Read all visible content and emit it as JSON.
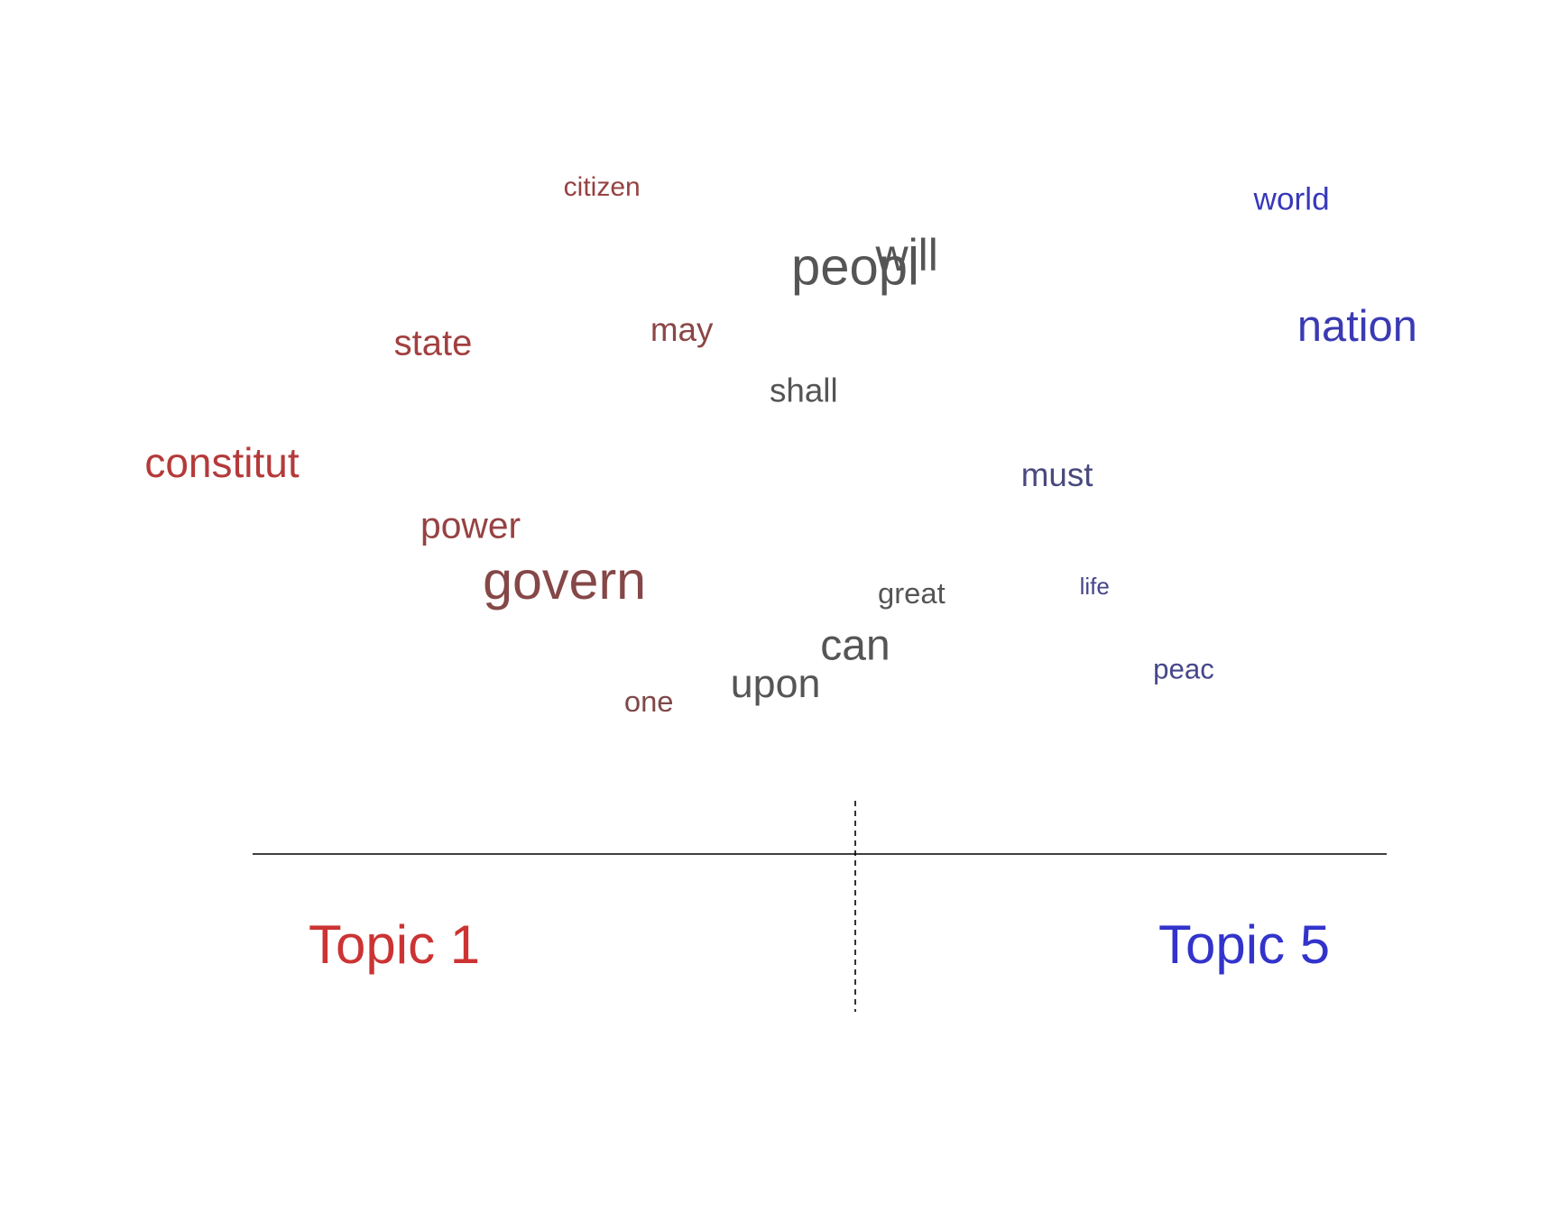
{
  "chart_data": {
    "type": "scatter",
    "left_label": "Topic 1",
    "right_label": "Topic 5",
    "colors": {
      "topic1": "#cc3333",
      "topic5": "#3333cc",
      "neutral": "#555555",
      "axis": "#000000"
    },
    "words": [
      {
        "word": "citizen",
        "x": -0.54,
        "y": 0.91,
        "weight": 0.15,
        "lean": -0.55
      },
      {
        "word": "world",
        "x": 0.93,
        "y": 0.88,
        "weight": 0.28,
        "lean": 0.85
      },
      {
        "word": "will",
        "x": 0.11,
        "y": 0.75,
        "weight": 0.65,
        "lean": 0.0
      },
      {
        "word": "peopl",
        "x": 0.0,
        "y": 0.72,
        "weight": 0.85,
        "lean": 0.0
      },
      {
        "word": "may",
        "x": -0.37,
        "y": 0.6,
        "weight": 0.32,
        "lean": -0.45
      },
      {
        "word": "state",
        "x": -0.9,
        "y": 0.57,
        "weight": 0.4,
        "lean": -0.65
      },
      {
        "word": "nation",
        "x": 1.07,
        "y": 0.6,
        "weight": 0.62,
        "lean": 0.8
      },
      {
        "word": "shall",
        "x": -0.11,
        "y": 0.47,
        "weight": 0.32,
        "lean": 0.0
      },
      {
        "word": "constitut",
        "x": -1.35,
        "y": 0.31,
        "weight": 0.55,
        "lean": -0.8
      },
      {
        "word": "must",
        "x": 0.43,
        "y": 0.29,
        "weight": 0.32,
        "lean": 0.35
      },
      {
        "word": "power",
        "x": -0.82,
        "y": 0.18,
        "weight": 0.42,
        "lean": -0.55
      },
      {
        "word": "govern",
        "x": -0.62,
        "y": 0.05,
        "weight": 0.88,
        "lean": -0.4
      },
      {
        "word": "great",
        "x": 0.12,
        "y": 0.04,
        "weight": 0.22,
        "lean": 0.0
      },
      {
        "word": "life",
        "x": 0.51,
        "y": 0.06,
        "weight": 0.05,
        "lean": 0.45
      },
      {
        "word": "can",
        "x": 0.0,
        "y": -0.08,
        "weight": 0.6,
        "lean": 0.0
      },
      {
        "word": "upon",
        "x": -0.17,
        "y": -0.16,
        "weight": 0.52,
        "lean": 0.0
      },
      {
        "word": "peac",
        "x": 0.7,
        "y": -0.12,
        "weight": 0.18,
        "lean": 0.45
      },
      {
        "word": "one",
        "x": -0.44,
        "y": -0.19,
        "weight": 0.22,
        "lean": -0.35
      }
    ]
  }
}
